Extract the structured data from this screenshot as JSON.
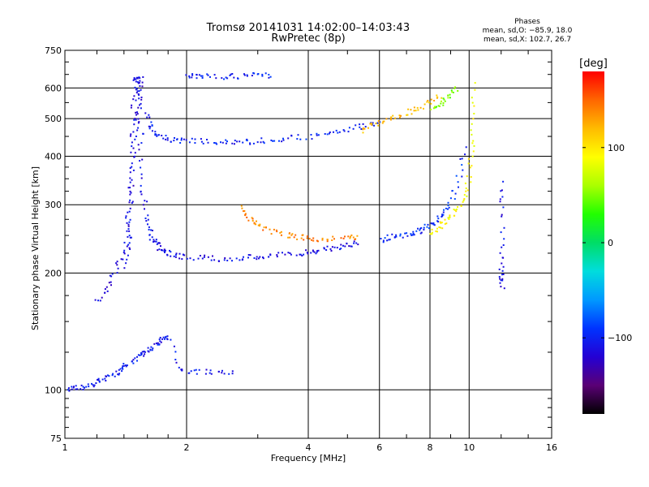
{
  "chart_data": {
    "type": "scatter",
    "title": "Tromsø 20141031 14:02:00–14:03:43",
    "subtitle": "RwPretec (8p)",
    "xlabel": "Frequency [MHz]",
    "ylabel": "Stationary phase Virtual Height [km]",
    "xscale": "log",
    "yscale": "log",
    "xlim": [
      1,
      16
    ],
    "ylim": [
      75,
      750
    ],
    "xticks": [
      1,
      2,
      4,
      6,
      8,
      10,
      16
    ],
    "xtick_labels": [
      "1",
      "2",
      "4",
      "6",
      "8",
      "10",
      "16"
    ],
    "yticks": [
      75,
      100,
      200,
      300,
      400,
      500,
      600,
      750
    ],
    "ytick_labels": [
      "75",
      "100",
      "200",
      "300",
      "400",
      "500",
      "600",
      "750"
    ],
    "grid": true,
    "stats": {
      "header": "Phases",
      "line_o": "mean, sd,O: −85.9, 18.0",
      "line_x": "mean, sd,X: 102.7, 26.7"
    },
    "colorbar": {
      "label": "[deg]",
      "range": [
        -180,
        180
      ],
      "ticks": [
        100,
        0,
        -100
      ],
      "tick_labels": [
        "100",
        "0",
        "−100"
      ],
      "colormap": "rainbow",
      "colors": [
        "#000000",
        "#5a0075",
        "#2400d4",
        "#0033ff",
        "#0099ff",
        "#00dddd",
        "#00dd66",
        "#22ff00",
        "#aaff00",
        "#ffff00",
        "#ffbb00",
        "#ff6600",
        "#ff0000"
      ]
    },
    "series": [
      {
        "phase": -110,
        "x": [
          1.42,
          1.43,
          1.44,
          1.45,
          1.46,
          1.47,
          1.48,
          1.49,
          1.5,
          1.51,
          1.52,
          1.53,
          1.54,
          1.55,
          1.57,
          1.6,
          1.63,
          1.67,
          1.7,
          1.75,
          1.8,
          1.9,
          2.0,
          2.2,
          2.4,
          2.6,
          2.8,
          3.0,
          3.2,
          3.5,
          3.8,
          4.0,
          4.2,
          4.5,
          4.8,
          5.0,
          5.3
        ],
        "y": [
          210,
          240,
          270,
          320,
          400,
          480,
          560,
          630,
          650,
          620,
          560,
          480,
          400,
          330,
          290,
          265,
          250,
          240,
          232,
          228,
          225,
          222,
          221,
          220,
          219,
          219,
          220,
          221,
          222,
          224,
          226,
          228,
          230,
          232,
          235,
          238,
          241
        ]
      },
      {
        "phase": -115,
        "x": [
          1.2,
          1.25,
          1.3,
          1.35,
          1.4,
          1.42,
          1.44,
          1.46,
          1.48,
          1.5,
          1.52,
          1.54
        ],
        "y": [
          170,
          180,
          195,
          210,
          230,
          260,
          300,
          350,
          420,
          500,
          580,
          640
        ]
      },
      {
        "phase": -100,
        "x": [
          1.6,
          1.62,
          1.65,
          1.7,
          1.8,
          1.9,
          2.0,
          2.2,
          2.4,
          2.6,
          2.8,
          3.0,
          3.3,
          3.6,
          4.0,
          4.4,
          4.8,
          5.2,
          5.6,
          6.0
        ],
        "y": [
          520,
          480,
          460,
          450,
          445,
          442,
          440,
          438,
          437,
          437,
          438,
          440,
          443,
          447,
          452,
          458,
          465,
          475,
          485,
          495
        ]
      },
      {
        "phase": -95,
        "x": [
          6.0,
          6.3,
          6.6,
          7.0,
          7.3,
          7.6,
          7.9,
          8.2,
          8.5,
          8.8,
          9.1,
          9.4,
          9.7
        ],
        "y": [
          245,
          248,
          250,
          252,
          255,
          260,
          265,
          272,
          280,
          295,
          320,
          360,
          420
        ]
      },
      {
        "phase": -100,
        "x": [
          2.0,
          2.1,
          2.2,
          2.4,
          2.6,
          2.8,
          3.0,
          3.2
        ],
        "y": [
          645,
          645,
          645,
          645,
          646,
          647,
          648,
          648
        ]
      },
      {
        "phase": -105,
        "x": [
          1.02,
          1.05,
          1.1,
          1.15,
          1.2,
          1.25,
          1.3,
          1.35,
          1.4,
          1.45,
          1.5,
          1.55,
          1.6,
          1.65,
          1.7,
          1.75,
          1.8,
          1.9,
          2.0,
          2.2,
          2.4,
          2.6
        ],
        "y": [
          101,
          102,
          102,
          103,
          106,
          108,
          110,
          112,
          115,
          118,
          122,
          125,
          127,
          130,
          133,
          136,
          138,
          115,
          112,
          112,
          112,
          112
        ]
      },
      {
        "phase": 140,
        "x": [
          2.7,
          2.8,
          2.9,
          3.0,
          3.2,
          3.4,
          3.6,
          3.8,
          4.0,
          4.3,
          4.6,
          5.0,
          5.3
        ],
        "y": [
          295,
          282,
          272,
          264,
          258,
          254,
          250,
          248,
          247,
          246,
          246,
          247,
          248
        ]
      },
      {
        "phase": 120,
        "x": [
          5.4,
          5.7,
          6.0,
          6.4,
          6.8,
          7.2,
          7.6,
          8.0,
          8.4
        ],
        "y": [
          470,
          480,
          490,
          500,
          510,
          525,
          540,
          555,
          575
        ]
      },
      {
        "phase": 90,
        "x": [
          8.0,
          8.3,
          8.6,
          8.9,
          9.2,
          9.5,
          9.8,
          10.0,
          10.1,
          10.2,
          10.3
        ],
        "y": [
          255,
          262,
          270,
          280,
          290,
          305,
          330,
          370,
          420,
          500,
          620
        ]
      },
      {
        "phase": 50,
        "x": [
          8.1,
          8.4,
          8.7,
          9.0,
          9.3
        ],
        "y": [
          530,
          545,
          560,
          580,
          600
        ]
      },
      {
        "phase": -110,
        "x": [
          12.0,
          12.0,
          12.0,
          12.0,
          12.0,
          12.0
        ],
        "y": [
          185,
          195,
          210,
          235,
          300,
          340
        ]
      }
    ]
  }
}
